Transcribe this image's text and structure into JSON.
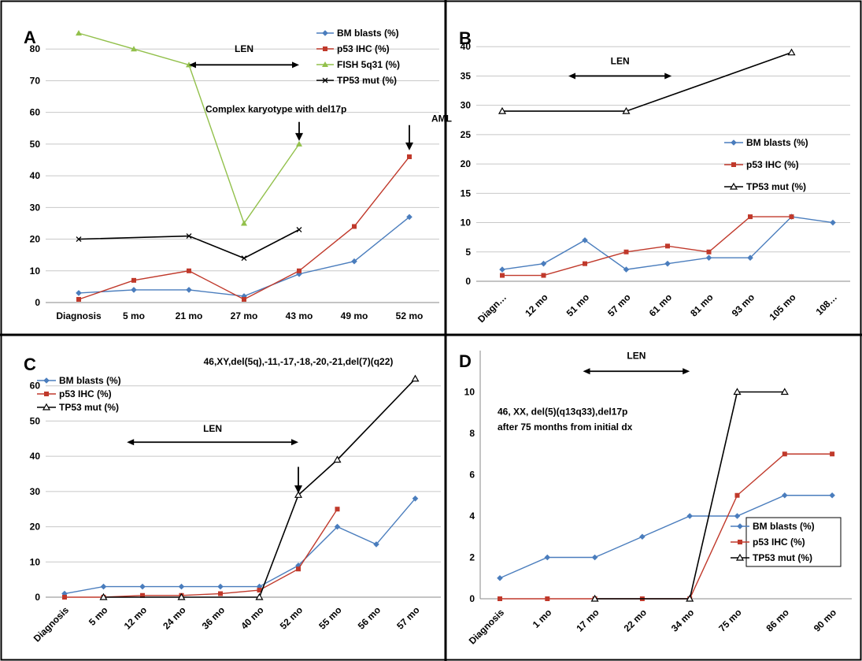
{
  "colors": {
    "BM blasts (%)": "#4a7dbd",
    "p53 IHC (%)": "#c0392b",
    "FISH 5q31 (%)": "#92c04b",
    "TP53 mut (%)": "#000000"
  },
  "chart_data": [
    {
      "type": "line",
      "letter": "A",
      "categories": [
        "Diagnosis",
        "5 mo",
        "21 mo",
        "27 mo",
        "43 mo",
        "49 mo",
        "52 mo"
      ],
      "ylim": [
        0,
        90
      ],
      "yticks": [
        0,
        10,
        20,
        30,
        40,
        50,
        60,
        70,
        80
      ],
      "grid": true,
      "legend": "top-right",
      "series": [
        {
          "name": "BM blasts (%)",
          "values": [
            3,
            4,
            4,
            2,
            9,
            13,
            27
          ],
          "marker": "diamond"
        },
        {
          "name": "p53 IHC (%)",
          "values": [
            1,
            7,
            10,
            1,
            10,
            24,
            46
          ],
          "marker": "square"
        },
        {
          "name": "FISH 5q31 (%)",
          "values": [
            85,
            80,
            75,
            25,
            50,
            null,
            null
          ],
          "marker": "triangle-filled"
        },
        {
          "name": "TP53 mut (%)",
          "values": [
            20,
            null,
            21,
            14,
            23,
            null,
            null
          ],
          "marker": "x"
        }
      ],
      "annotations": [
        {
          "text": "LEN",
          "type": "double-arrow",
          "x_from": 2,
          "x_to": 4,
          "y": 75,
          "label_y": 79
        },
        {
          "text": "Complex karyotype with del17p",
          "type": "down-arrow",
          "x": 4,
          "y_from": 57,
          "y_to": 51,
          "label_x": 2.3,
          "label_y": 60
        },
        {
          "text": "AML",
          "type": "down-arrow",
          "x": 6,
          "y_from": 56,
          "y_to": 48,
          "label_x": 6.4,
          "label_y": 57
        }
      ]
    },
    {
      "type": "line",
      "letter": "B",
      "categories": [
        "Diagn…",
        "12 mo",
        "51 mo",
        "57 mo",
        "61 mo",
        "81 mo",
        "93 mo",
        "105 mo",
        "108…"
      ],
      "ylim": [
        0,
        45
      ],
      "yticks": [
        0,
        5,
        10,
        15,
        20,
        25,
        30,
        35,
        40
      ],
      "grid": true,
      "legend": "middle-right",
      "series": [
        {
          "name": "BM blasts (%)",
          "values": [
            2,
            3,
            7,
            2,
            3,
            4,
            4,
            11,
            10
          ],
          "marker": "diamond"
        },
        {
          "name": "p53 IHC (%)",
          "values": [
            1,
            1,
            3,
            5,
            6,
            5,
            11,
            11,
            null
          ],
          "marker": "square"
        },
        {
          "name": "TP53 mut (%)",
          "values": [
            29,
            null,
            null,
            29,
            null,
            null,
            null,
            39,
            null
          ],
          "marker": "triangle-open"
        }
      ],
      "annotations": [
        {
          "text": "LEN",
          "type": "double-arrow",
          "x_from": 1.6,
          "x_to": 4.1,
          "y": 35,
          "label_y": 37
        }
      ]
    },
    {
      "type": "line",
      "letter": "C",
      "categories": [
        "Diagnosis",
        "5 mo",
        "12 mo",
        "24 mo",
        "36 mo",
        "40 mo",
        "52 mo",
        "55 mo",
        "56 mo",
        "57 mo"
      ],
      "ylim": [
        0,
        70
      ],
      "yticks": [
        0,
        10,
        20,
        30,
        40,
        50,
        60
      ],
      "grid": true,
      "legend": "top-left",
      "series": [
        {
          "name": "BM blasts (%)",
          "values": [
            1,
            3,
            3,
            3,
            3,
            3,
            9,
            20,
            15,
            28
          ],
          "marker": "diamond"
        },
        {
          "name": "p53 IHC (%)",
          "values": [
            0,
            0,
            0.5,
            0.5,
            1,
            2,
            8,
            25,
            null,
            null
          ],
          "marker": "square"
        },
        {
          "name": "TP53 mut (%)",
          "values": [
            null,
            0,
            null,
            0,
            null,
            0,
            29,
            39,
            null,
            62
          ],
          "marker": "triangle-open"
        }
      ],
      "annotations": [
        {
          "text": "LEN",
          "type": "double-arrow",
          "x_from": 1.6,
          "x_to": 6,
          "y": 44,
          "label_y": 47
        },
        {
          "text": "46,XY,del(5q),-11,-17,-18,-20,-21,del(7)(q22)",
          "type": "text",
          "label_x": 6,
          "label_y": 66
        },
        {
          "text": "",
          "type": "down-arrow",
          "x": 6,
          "y_from": 37,
          "y_to": 29.5
        }
      ]
    },
    {
      "type": "line",
      "letter": "D",
      "categories": [
        "Diagnosis",
        "1 mo",
        "17 mo",
        "22 mo",
        "34 mo",
        "75 mo",
        "86 mo",
        "90 mo"
      ],
      "ylim": [
        0,
        12
      ],
      "yticks": [
        0,
        2,
        4,
        6,
        8,
        10
      ],
      "grid": false,
      "legend": "bottom-right",
      "series": [
        {
          "name": "BM blasts (%)",
          "values": [
            1,
            2,
            2,
            3,
            4,
            4,
            5,
            5
          ],
          "marker": "diamond"
        },
        {
          "name": "p53 IHC (%)",
          "values": [
            0,
            0,
            0,
            0,
            0,
            5,
            7,
            7
          ],
          "marker": "square"
        },
        {
          "name": "TP53 mut (%)",
          "values": [
            null,
            null,
            0,
            null,
            0,
            10,
            10,
            null
          ],
          "marker": "triangle-open"
        }
      ],
      "annotations": [
        {
          "text": "LEN",
          "type": "double-arrow",
          "x_from": 1.75,
          "x_to": 4,
          "y": 11,
          "label_y": 11.6
        },
        {
          "text": "46, XX, del(5)(q13q33),del17p",
          "type": "text",
          "label_x": -0.05,
          "label_y": 8.9
        },
        {
          "text": "after 75 months from initial dx",
          "type": "text",
          "label_x": -0.05,
          "label_y": 8.15
        }
      ]
    }
  ]
}
